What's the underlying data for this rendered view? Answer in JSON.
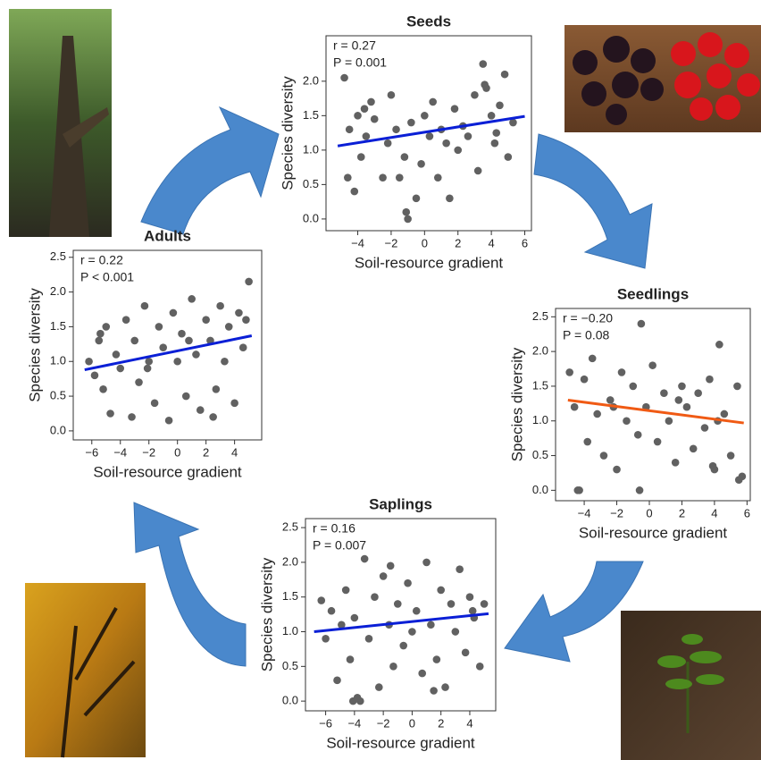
{
  "chart_data": [
    {
      "type": "scatter",
      "title": "Seeds",
      "xlabel": "Soil-resource gradient",
      "ylabel": "Species diversity",
      "annotations": [
        "r = 0.27",
        "P = 0.001"
      ],
      "color": "#616161",
      "x": [
        -4.8,
        -4.5,
        -4.2,
        -4,
        -3.8,
        -3.5,
        -3.2,
        -3,
        -2.5,
        -2.2,
        -2,
        -1.7,
        -1.5,
        -1.2,
        -1,
        -0.8,
        -0.5,
        -0.2,
        0,
        0.3,
        0.5,
        0.8,
        1,
        1.3,
        1.5,
        1.8,
        2,
        2.3,
        2.6,
        3,
        3.2,
        3.5,
        3.7,
        4,
        4.2,
        4.5,
        4.8,
        5,
        5.3,
        -4.6,
        -3.6,
        -1.1,
        3.6,
        4.3
      ],
      "y": [
        2.05,
        1.3,
        0.4,
        1.5,
        0.9,
        1.2,
        1.7,
        1.45,
        0.6,
        1.1,
        1.8,
        1.3,
        0.6,
        0.9,
        0,
        1.4,
        0.3,
        0.8,
        1.5,
        1.2,
        1.7,
        0.6,
        1.3,
        1.1,
        0.3,
        1.6,
        1,
        1.35,
        1.2,
        1.8,
        0.7,
        2.25,
        1.9,
        1.5,
        1.1,
        1.65,
        2.1,
        0.9,
        1.4,
        0.6,
        1.6,
        0.1,
        1.95,
        1.25
      ],
      "trend": {
        "x": [
          -5.2,
          6
        ],
        "y": [
          1.06,
          1.49
        ],
        "color": "#0a1fd6"
      },
      "xlim": [
        -5.9,
        6.4
      ],
      "ylim": [
        -0.17,
        2.66
      ],
      "xticks": [
        {
          "value": -4,
          "label": "−4"
        },
        {
          "value": -2,
          "label": "−2"
        },
        0,
        2,
        4,
        6
      ],
      "yticks": [
        {
          "value": 0,
          "label": "0.0"
        },
        0.5,
        {
          "value": 1,
          "label": "1.0"
        },
        1.5,
        {
          "value": 2,
          "label": "2.0"
        }
      ]
    },
    {
      "type": "scatter",
      "title": "Adults",
      "xlabel": "Soil-resource gradient",
      "ylabel": "Species diversity",
      "annotations": [
        "r = 0.22",
        "P < 0.001"
      ],
      "color": "#616161",
      "x": [
        -6.2,
        -5.8,
        -5.5,
        -5.2,
        -5,
        -4.7,
        -4.3,
        -4,
        -3.6,
        -3.2,
        -3,
        -2.7,
        -2.3,
        -2,
        -1.6,
        -1.3,
        -1,
        -0.6,
        -0.3,
        0,
        0.3,
        0.6,
        1,
        1.3,
        1.6,
        2,
        2.3,
        2.7,
        3,
        3.3,
        3.6,
        4,
        4.3,
        4.6,
        5,
        -5.4,
        -2.1,
        0.8,
        2.5,
        4.8
      ],
      "y": [
        1.0,
        0.8,
        1.3,
        0.6,
        1.5,
        0.25,
        1.1,
        0.9,
        1.6,
        0.2,
        1.3,
        0.7,
        1.8,
        1.0,
        0.4,
        1.5,
        1.2,
        0.15,
        1.7,
        1.0,
        1.4,
        0.5,
        1.9,
        1.1,
        0.3,
        1.6,
        1.3,
        0.6,
        1.8,
        1.0,
        1.5,
        0.4,
        1.7,
        1.2,
        2.15,
        1.4,
        0.9,
        1.3,
        0.2,
        1.6
      ],
      "trend": {
        "x": [
          -6.5,
          5.2
        ],
        "y": [
          0.88,
          1.37
        ],
        "color": "#0a1fd6"
      },
      "xlim": [
        -7.3,
        5.9
      ],
      "ylim": [
        -0.13,
        2.6
      ],
      "xticks": [
        {
          "value": -6,
          "label": "−6"
        },
        {
          "value": -4,
          "label": "−4"
        },
        {
          "value": -2,
          "label": "−2"
        },
        0,
        2,
        4
      ],
      "yticks": [
        {
          "value": 0,
          "label": "0.0"
        },
        0.5,
        {
          "value": 1,
          "label": "1.0"
        },
        1.5,
        {
          "value": 2,
          "label": "2.0"
        },
        2.5
      ]
    },
    {
      "type": "scatter",
      "title": "Seedlings",
      "xlabel": "Soil-resource gradient",
      "ylabel": "Species diversity",
      "annotations": [
        "r = −0.20",
        "P = 0.08"
      ],
      "color": "#616161",
      "x": [
        -4.9,
        -4.6,
        -4.3,
        -4,
        -3.8,
        -3.5,
        -3.2,
        -2.8,
        -2.4,
        -2,
        -1.7,
        -1.4,
        -1,
        -0.7,
        -0.5,
        -0.2,
        0.2,
        0.5,
        0.9,
        1.2,
        1.6,
        2,
        2.3,
        2.7,
        3,
        3.4,
        3.7,
        4,
        4.3,
        4.6,
        5,
        5.4,
        5.7,
        -4.4,
        -2.2,
        -0.6,
        1.8,
        3.9,
        4.2,
        5.5
      ],
      "y": [
        1.7,
        1.2,
        0,
        1.6,
        0.7,
        1.9,
        1.1,
        0.5,
        1.3,
        0.3,
        1.7,
        1.0,
        1.5,
        0.8,
        2.4,
        1.2,
        1.8,
        0.7,
        1.4,
        1.0,
        0.4,
        1.5,
        1.2,
        0.6,
        1.4,
        0.9,
        1.6,
        0.3,
        2.1,
        1.1,
        0.5,
        1.5,
        0.2,
        0.0,
        1.2,
        0.0,
        1.3,
        0.35,
        1.0,
        0.15
      ],
      "trend": {
        "x": [
          -5,
          5.8
        ],
        "y": [
          1.3,
          0.97
        ],
        "color": "#f05a14"
      },
      "xlim": [
        -5.76,
        6.2
      ],
      "ylim": [
        -0.15,
        2.62
      ],
      "xticks": [
        {
          "value": -4,
          "label": "−4"
        },
        {
          "value": -2,
          "label": "−2"
        },
        0,
        2,
        4,
        6
      ],
      "yticks": [
        {
          "value": 0,
          "label": "0.0"
        },
        0.5,
        {
          "value": 1,
          "label": "1.0"
        },
        1.5,
        {
          "value": 2,
          "label": "2.0"
        },
        2.5
      ]
    },
    {
      "type": "scatter",
      "title": "Saplings",
      "xlabel": "Soil-resource gradient",
      "ylabel": "Species diversity",
      "annotations": [
        "r = 0.16",
        "P = 0.007"
      ],
      "color": "#616161",
      "x": [
        -6.3,
        -6,
        -5.6,
        -5.2,
        -4.9,
        -4.6,
        -4.3,
        -4,
        -3.6,
        -3.3,
        -3,
        -2.6,
        -2.3,
        -2,
        -1.6,
        -1.3,
        -1,
        -0.6,
        -0.3,
        0,
        0.3,
        0.7,
        1,
        1.3,
        1.7,
        2,
        2.3,
        2.7,
        3,
        3.3,
        3.7,
        4,
        4.3,
        4.7,
        5,
        -4.1,
        -3.8,
        -1.5,
        1.5,
        4.2
      ],
      "y": [
        1.45,
        0.9,
        1.3,
        0.3,
        1.1,
        1.6,
        0.6,
        1.2,
        0.0,
        2.05,
        0.9,
        1.5,
        0.2,
        1.8,
        1.1,
        0.5,
        1.4,
        0.8,
        1.7,
        1.0,
        1.3,
        0.4,
        2.0,
        1.1,
        0.6,
        1.6,
        0.2,
        1.4,
        1.0,
        1.9,
        0.7,
        1.5,
        1.2,
        0.5,
        1.4,
        0.0,
        0.05,
        1.95,
        0.15,
        1.3
      ],
      "trend": {
        "x": [
          -6.8,
          5.3
        ],
        "y": [
          1.0,
          1.26
        ],
        "color": "#0a1fd6"
      },
      "xlim": [
        -7.4,
        5.8
      ],
      "ylim": [
        -0.14,
        2.63
      ],
      "xticks": [
        {
          "value": -6,
          "label": "−6"
        },
        {
          "value": -4,
          "label": "−4"
        },
        {
          "value": -2,
          "label": "−2"
        },
        0,
        2,
        4
      ],
      "yticks": [
        {
          "value": 0,
          "label": "0.0"
        },
        0.5,
        {
          "value": 1,
          "label": "1.0"
        },
        1.5,
        {
          "value": 2,
          "label": "2.0"
        },
        2.5
      ]
    }
  ]
}
